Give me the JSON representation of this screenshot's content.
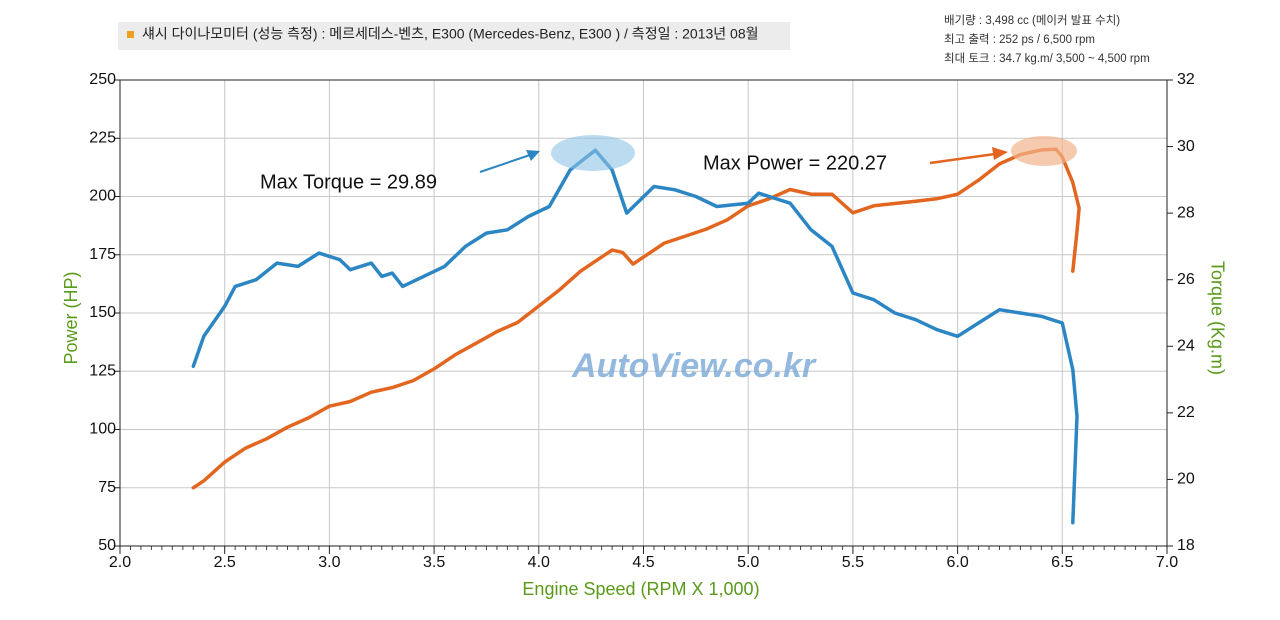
{
  "chart_data": {
    "type": "line",
    "title": "섀시 다이나모미터 (성능 측정) :  메르세데스-벤츠, E300  (Mercedes-Benz, E300 ) / 측정일 : 2013년 08월",
    "specs": [
      "배기량 :  3,498 cc   (메이커 발표 수치)",
      "최고 출력 : 252 ps / 6,500 rpm",
      "최대 토크 : 34.7 kg.m/ 3,500 ~ 4,500 rpm"
    ],
    "watermark": "AutoView.co.kr",
    "x_label": "Engine Speed (RPM X 1,000)",
    "y_label": "Power (HP)",
    "y2_label": "Torque (Kg.m)",
    "annotations": [
      "Max Torque = 29.89",
      "Max Power = 220.27"
    ],
    "xlim": [
      2,
      7
    ],
    "xticks": [
      {
        "value": 2,
        "label": "2.0"
      },
      {
        "value": 2.5,
        "label": "2.5"
      },
      {
        "value": 3,
        "label": "3.0"
      },
      {
        "value": 3.5,
        "label": "3.5"
      },
      {
        "value": 4,
        "label": "4.0"
      },
      {
        "value": 4.5,
        "label": "4.5"
      },
      {
        "value": 5,
        "label": "5.0"
      },
      {
        "value": 5.5,
        "label": "5.5"
      },
      {
        "value": 6,
        "label": "6.0"
      },
      {
        "value": 6.5,
        "label": "6.5"
      },
      {
        "value": 7,
        "label": "7.0"
      }
    ],
    "ylim": [
      50,
      250
    ],
    "yticks": [
      50,
      75,
      100,
      125,
      150,
      175,
      200,
      225,
      250
    ],
    "y2lim": [
      18,
      32
    ],
    "y2ticks": [
      18,
      20,
      22,
      24,
      26,
      28,
      30,
      32
    ],
    "grid": true,
    "series": [
      {
        "name": "Power",
        "color": "#e2661f",
        "axis": "y",
        "x": [
          2.35,
          2.4,
          2.5,
          2.6,
          2.7,
          2.8,
          2.9,
          3.0,
          3.1,
          3.2,
          3.3,
          3.4,
          3.5,
          3.6,
          3.7,
          3.8,
          3.9,
          4.0,
          4.1,
          4.2,
          4.3,
          4.35,
          4.4,
          4.45,
          4.5,
          4.6,
          4.7,
          4.8,
          4.9,
          5.0,
          5.1,
          5.2,
          5.3,
          5.4,
          5.45,
          5.5,
          5.6,
          5.7,
          5.8,
          5.9,
          6.0,
          6.1,
          6.2,
          6.3,
          6.4,
          6.47,
          6.5,
          6.55,
          6.58,
          6.57,
          6.55
        ],
        "values": [
          75,
          78,
          86,
          92,
          96,
          101,
          105,
          110,
          112,
          116,
          118,
          121,
          126,
          132,
          137,
          142,
          146,
          153,
          160,
          168,
          174,
          177,
          176,
          171,
          174,
          180,
          183,
          186,
          190,
          196,
          199,
          203,
          201,
          201,
          197,
          193,
          196,
          197,
          198,
          199,
          201,
          207,
          214,
          218,
          220,
          220.27,
          217,
          206,
          195,
          185,
          168
        ]
      },
      {
        "name": "Torque",
        "color": "#2b86c3",
        "axis": "y2",
        "x": [
          2.35,
          2.4,
          2.5,
          2.55,
          2.65,
          2.75,
          2.85,
          2.95,
          3.05,
          3.1,
          3.2,
          3.25,
          3.3,
          3.35,
          3.45,
          3.55,
          3.65,
          3.75,
          3.85,
          3.95,
          4.05,
          4.15,
          4.27,
          4.35,
          4.42,
          4.55,
          4.65,
          4.75,
          4.85,
          5.0,
          5.05,
          5.1,
          5.2,
          5.3,
          5.4,
          5.5,
          5.6,
          5.7,
          5.8,
          5.9,
          6.0,
          6.1,
          6.2,
          6.3,
          6.4,
          6.5,
          6.55,
          6.57,
          6.55
        ],
        "values": [
          23.4,
          24.3,
          25.2,
          25.8,
          26.0,
          26.5,
          26.4,
          26.8,
          26.6,
          26.3,
          26.5,
          26.1,
          26.2,
          25.8,
          26.1,
          26.4,
          27.0,
          27.4,
          27.5,
          27.9,
          28.2,
          29.3,
          29.89,
          29.3,
          28.0,
          28.8,
          28.7,
          28.5,
          28.2,
          28.3,
          28.6,
          28.5,
          28.3,
          27.5,
          27.0,
          25.6,
          25.4,
          25.0,
          24.8,
          24.5,
          24.3,
          24.7,
          25.1,
          25.0,
          24.9,
          24.7,
          23.3,
          21.9,
          18.7
        ]
      }
    ]
  }
}
